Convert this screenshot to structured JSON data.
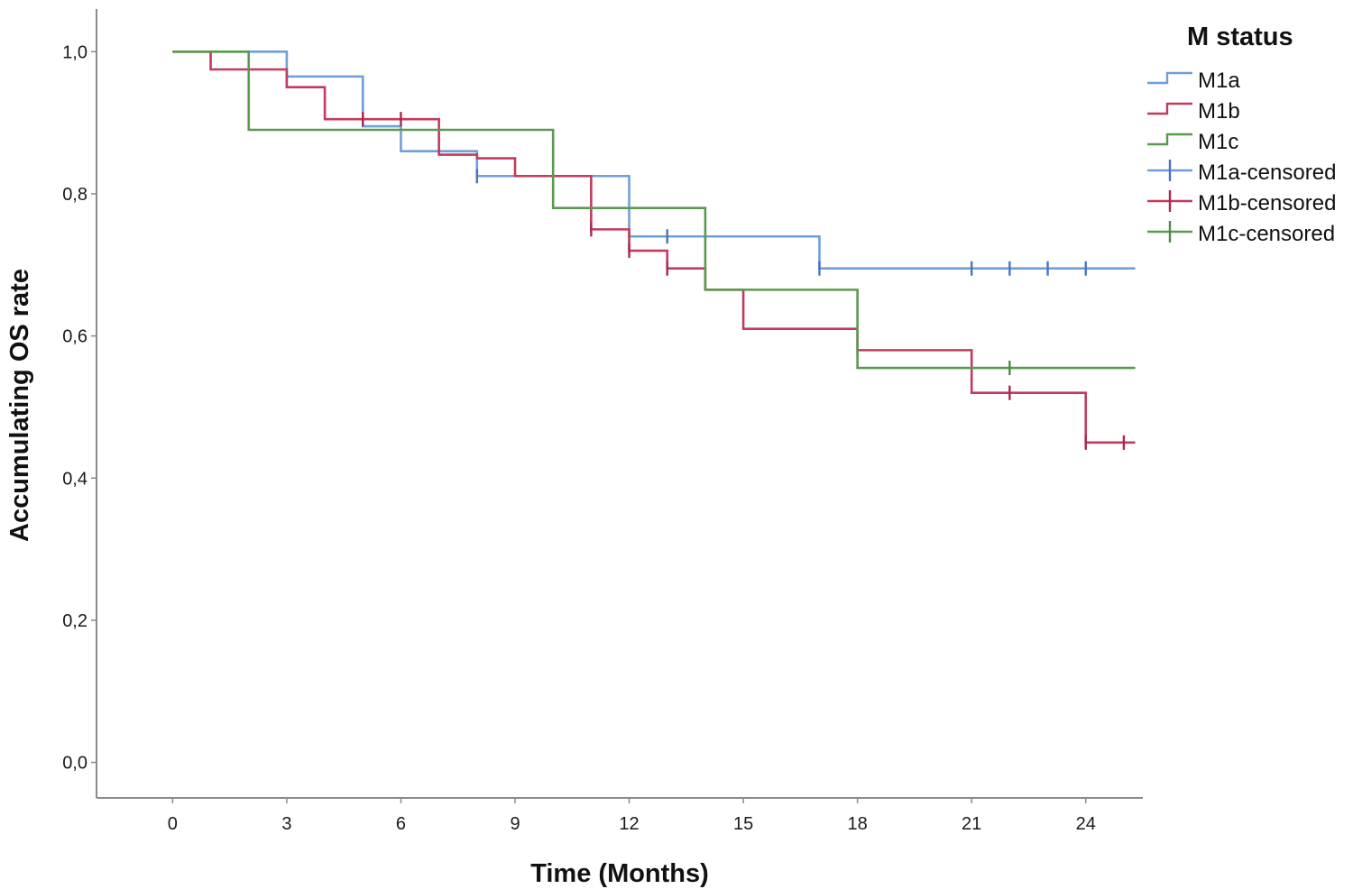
{
  "chart_data": {
    "type": "line",
    "subtype": "kaplan-meier",
    "title": "",
    "xlabel": "Time (Months)",
    "ylabel": "Accumulating OS rate",
    "xlim": [
      -2,
      25.5
    ],
    "ylim": [
      -0.05,
      1.06
    ],
    "x_ticks": [
      0,
      3,
      6,
      9,
      12,
      15,
      18,
      21,
      24
    ],
    "x_tick_labels": [
      "0",
      "3",
      "6",
      "9",
      "12",
      "15",
      "18",
      "21",
      "24"
    ],
    "y_ticks": [
      0.0,
      0.2,
      0.4,
      0.6,
      0.8,
      1.0
    ],
    "y_tick_labels": [
      "0,0",
      "0,2",
      "0,4",
      "0,6",
      "0,8",
      "1,0"
    ],
    "legend": {
      "title": "M status",
      "position": "right",
      "entries": [
        "M1a",
        "M1b",
        "M1c",
        "M1a-censored",
        "M1b-censored",
        "M1c-censored"
      ]
    },
    "series": [
      {
        "name": "M1a",
        "color": "#6f9fd8",
        "censor_color": "#4a72c4",
        "steps": [
          [
            0,
            1.0
          ],
          [
            3,
            0.965
          ],
          [
            5,
            0.895
          ],
          [
            6,
            0.86
          ],
          [
            8,
            0.825
          ],
          [
            12,
            0.74
          ],
          [
            17,
            0.695
          ]
        ],
        "end_x": 25.3,
        "censored": [
          [
            3,
            0.965
          ],
          [
            8,
            0.825
          ],
          [
            12,
            0.74
          ],
          [
            13,
            0.74
          ],
          [
            17,
            0.695
          ],
          [
            21,
            0.695
          ],
          [
            22,
            0.695
          ],
          [
            23,
            0.695
          ],
          [
            24,
            0.695
          ]
        ]
      },
      {
        "name": "M1b",
        "color": "#c33a5e",
        "censor_color": "#a8274e",
        "steps": [
          [
            0,
            1.0
          ],
          [
            1,
            0.975
          ],
          [
            3,
            0.95
          ],
          [
            4,
            0.905
          ],
          [
            7,
            0.855
          ],
          [
            8,
            0.85
          ],
          [
            9,
            0.825
          ],
          [
            11,
            0.75
          ],
          [
            12,
            0.72
          ],
          [
            13,
            0.695
          ],
          [
            14,
            0.665
          ],
          [
            15,
            0.61
          ],
          [
            18,
            0.58
          ],
          [
            21,
            0.52
          ],
          [
            24,
            0.45
          ]
        ],
        "end_x": 25.3,
        "censored": [
          [
            5,
            0.905
          ],
          [
            6,
            0.905
          ],
          [
            11,
            0.75
          ],
          [
            12,
            0.72
          ],
          [
            13,
            0.695
          ],
          [
            18,
            0.58
          ],
          [
            22,
            0.52
          ],
          [
            24,
            0.45
          ],
          [
            25,
            0.45
          ]
        ]
      },
      {
        "name": "M1c",
        "color": "#5a9a4e",
        "censor_color": "#4f8a45",
        "steps": [
          [
            0,
            1.0
          ],
          [
            2,
            0.89
          ],
          [
            10,
            0.78
          ],
          [
            14,
            0.665
          ],
          [
            18,
            0.555
          ]
        ],
        "end_x": 25.3,
        "censored": [
          [
            22,
            0.555
          ]
        ]
      }
    ]
  }
}
